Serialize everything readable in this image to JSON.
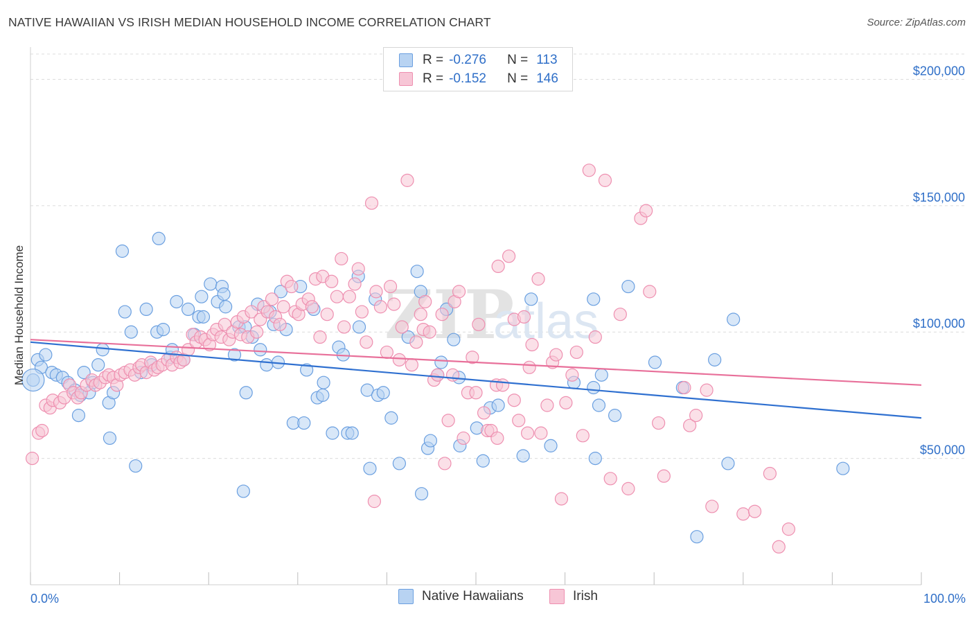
{
  "header": {
    "title": "NATIVE HAWAIIAN VS IRISH MEDIAN HOUSEHOLD INCOME CORRELATION CHART",
    "source": "Source: ZipAtlas.com"
  },
  "legend_top": {
    "rows": [
      {
        "r_label": "R =",
        "r_value": "-0.276",
        "n_label": "N =",
        "n_value": "113"
      },
      {
        "r_label": "R =",
        "r_value": "-0.152",
        "n_label": "N =",
        "n_value": "146"
      }
    ]
  },
  "legend_bottom": {
    "items": [
      {
        "label": "Native Hawaiians"
      },
      {
        "label": "Irish"
      }
    ]
  },
  "watermark": {
    "zip": "ZIP",
    "atlas": "atlas"
  },
  "colors": {
    "blue_fill": "#b8d3f2",
    "blue_stroke": "#6a9fe0",
    "blue_line": "#2f70d0",
    "pink_fill": "#f7c6d6",
    "pink_stroke": "#ee8fb0",
    "pink_line": "#e8709a",
    "axis_label": "#2f6fc8",
    "grid": "#dcdcdc"
  },
  "chart_data": {
    "type": "scatter",
    "title": "NATIVE HAWAIIAN VS IRISH MEDIAN HOUSEHOLD INCOME CORRELATION CHART",
    "xlabel": "",
    "ylabel": "Median Household Income",
    "xlim": [
      0,
      100
    ],
    "ylim": [
      0,
      210000
    ],
    "x_tick_labels": [
      "0.0%",
      "100.0%"
    ],
    "y_ticks": [
      50000,
      100000,
      150000,
      200000
    ],
    "y_tick_labels": [
      "$50,000",
      "$100,000",
      "$150,000",
      "$200,000"
    ],
    "grid": true,
    "legend_position": "top-center",
    "series": [
      {
        "name": "Native Hawaiians",
        "r": -0.276,
        "n": 113,
        "trend": {
          "x": [
            0,
            100
          ],
          "y": [
            96000,
            66000
          ]
        },
        "points": [
          [
            0.3,
            81000
          ],
          [
            0.8,
            89000
          ],
          [
            1.2,
            86000
          ],
          [
            1.7,
            91000
          ],
          [
            2.4,
            84000
          ],
          [
            2.9,
            83000
          ],
          [
            3.6,
            82000
          ],
          [
            4.2,
            80000
          ],
          [
            5.0,
            77000
          ],
          [
            5.6,
            75000
          ],
          [
            5.4,
            67000
          ],
          [
            6.0,
            84000
          ],
          [
            6.6,
            76000
          ],
          [
            7.0,
            80000
          ],
          [
            7.6,
            87000
          ],
          [
            8.1,
            93000
          ],
          [
            8.8,
            72000
          ],
          [
            9.3,
            76000
          ],
          [
            8.9,
            58000
          ],
          [
            10.3,
            132000
          ],
          [
            10.6,
            108000
          ],
          [
            11.3,
            100000
          ],
          [
            11.8,
            47000
          ],
          [
            12.4,
            84000
          ],
          [
            13.0,
            109000
          ],
          [
            13.6,
            87000
          ],
          [
            14.2,
            100000
          ],
          [
            14.4,
            137000
          ],
          [
            14.9,
            101000
          ],
          [
            15.7,
            90000
          ],
          [
            15.9,
            93000
          ],
          [
            16.4,
            112000
          ],
          [
            17.2,
            89000
          ],
          [
            17.7,
            109000
          ],
          [
            18.4,
            99000
          ],
          [
            18.9,
            106000
          ],
          [
            19.4,
            106000
          ],
          [
            19.2,
            114000
          ],
          [
            20.2,
            119000
          ],
          [
            21.0,
            112000
          ],
          [
            21.5,
            118000
          ],
          [
            21.7,
            115000
          ],
          [
            21.9,
            110000
          ],
          [
            22.9,
            91000
          ],
          [
            23.4,
            102000
          ],
          [
            23.9,
            37000
          ],
          [
            24.1,
            102000
          ],
          [
            24.2,
            76000
          ],
          [
            24.9,
            98000
          ],
          [
            25.5,
            111000
          ],
          [
            25.8,
            93000
          ],
          [
            26.5,
            87000
          ],
          [
            26.9,
            108000
          ],
          [
            27.3,
            103000
          ],
          [
            27.8,
            88000
          ],
          [
            28.1,
            116000
          ],
          [
            28.7,
            101000
          ],
          [
            29.5,
            64000
          ],
          [
            30.3,
            118000
          ],
          [
            31.0,
            85000
          ],
          [
            30.7,
            64000
          ],
          [
            31.8,
            109000
          ],
          [
            32.2,
            74000
          ],
          [
            32.9,
            80000
          ],
          [
            32.8,
            75000
          ],
          [
            33.9,
            60000
          ],
          [
            34.6,
            94000
          ],
          [
            35.1,
            91000
          ],
          [
            35.6,
            60000
          ],
          [
            36.1,
            60000
          ],
          [
            36.8,
            122000
          ],
          [
            36.9,
            102000
          ],
          [
            37.8,
            77000
          ],
          [
            38.1,
            46000
          ],
          [
            38.7,
            113000
          ],
          [
            39.0,
            75000
          ],
          [
            39.6,
            76000
          ],
          [
            40.5,
            66000
          ],
          [
            41.4,
            48000
          ],
          [
            42.4,
            98000
          ],
          [
            43.4,
            124000
          ],
          [
            43.8,
            116000
          ],
          [
            43.9,
            36000
          ],
          [
            44.6,
            54000
          ],
          [
            44.9,
            57000
          ],
          [
            45.7,
            83000
          ],
          [
            46.1,
            88000
          ],
          [
            46.7,
            109000
          ],
          [
            47.5,
            97000
          ],
          [
            48.1,
            82000
          ],
          [
            48.2,
            55000
          ],
          [
            50.1,
            62000
          ],
          [
            50.8,
            49000
          ],
          [
            51.6,
            70000
          ],
          [
            52.5,
            71000
          ],
          [
            55.3,
            51000
          ],
          [
            56.2,
            113000
          ],
          [
            58.4,
            55000
          ],
          [
            61.0,
            80000
          ],
          [
            63.2,
            113000
          ],
          [
            63.2,
            78000
          ],
          [
            63.4,
            50000
          ],
          [
            63.8,
            71000
          ],
          [
            64.1,
            83000
          ],
          [
            65.6,
            67000
          ],
          [
            67.1,
            118000
          ],
          [
            70.1,
            88000
          ],
          [
            73.2,
            78000
          ],
          [
            74.8,
            19000
          ],
          [
            76.8,
            89000
          ],
          [
            78.3,
            48000
          ],
          [
            78.9,
            105000
          ],
          [
            91.2,
            46000
          ]
        ]
      },
      {
        "name": "Irish",
        "r": -0.152,
        "n": 146,
        "trend": {
          "x": [
            0,
            100
          ],
          "y": [
            97000,
            79000
          ]
        },
        "points": [
          [
            0.2,
            50000
          ],
          [
            0.9,
            60000
          ],
          [
            1.3,
            61000
          ],
          [
            1.7,
            71000
          ],
          [
            2.2,
            70000
          ],
          [
            2.5,
            73000
          ],
          [
            3.3,
            72000
          ],
          [
            3.8,
            74000
          ],
          [
            4.4,
            79000
          ],
          [
            4.8,
            76000
          ],
          [
            5.3,
            74000
          ],
          [
            5.7,
            76000
          ],
          [
            6.3,
            79000
          ],
          [
            6.9,
            81000
          ],
          [
            7.3,
            79000
          ],
          [
            7.8,
            80000
          ],
          [
            8.4,
            82000
          ],
          [
            8.8,
            83000
          ],
          [
            9.3,
            82000
          ],
          [
            9.7,
            79000
          ],
          [
            10.1,
            83000
          ],
          [
            10.6,
            84000
          ],
          [
            11.2,
            85000
          ],
          [
            11.7,
            83000
          ],
          [
            12.2,
            86000
          ],
          [
            12.5,
            87000
          ],
          [
            13.0,
            84000
          ],
          [
            13.5,
            88000
          ],
          [
            13.9,
            85000
          ],
          [
            14.3,
            86000
          ],
          [
            14.8,
            87000
          ],
          [
            15.4,
            89000
          ],
          [
            15.9,
            87000
          ],
          [
            16.4,
            90000
          ],
          [
            16.8,
            88000
          ],
          [
            17.2,
            89000
          ],
          [
            17.7,
            93000
          ],
          [
            18.2,
            99000
          ],
          [
            18.6,
            96000
          ],
          [
            19.1,
            98000
          ],
          [
            19.6,
            97000
          ],
          [
            20.1,
            95000
          ],
          [
            20.5,
            99000
          ],
          [
            20.9,
            101000
          ],
          [
            21.4,
            98000
          ],
          [
            21.8,
            103000
          ],
          [
            22.3,
            97000
          ],
          [
            22.7,
            100000
          ],
          [
            23.2,
            104000
          ],
          [
            23.6,
            99000
          ],
          [
            23.9,
            106000
          ],
          [
            24.4,
            98000
          ],
          [
            24.8,
            108000
          ],
          [
            25.4,
            100000
          ],
          [
            25.8,
            105000
          ],
          [
            26.2,
            110000
          ],
          [
            26.6,
            108000
          ],
          [
            27.1,
            113000
          ],
          [
            27.5,
            106000
          ],
          [
            28.0,
            103000
          ],
          [
            28.4,
            110000
          ],
          [
            28.8,
            120000
          ],
          [
            29.3,
            118000
          ],
          [
            29.7,
            108000
          ],
          [
            30.1,
            107000
          ],
          [
            30.5,
            111000
          ],
          [
            31.2,
            113000
          ],
          [
            31.6,
            110000
          ],
          [
            32.0,
            121000
          ],
          [
            32.5,
            98000
          ],
          [
            32.8,
            122000
          ],
          [
            33.3,
            107000
          ],
          [
            33.8,
            120000
          ],
          [
            34.4,
            114000
          ],
          [
            34.9,
            129000
          ],
          [
            35.2,
            102000
          ],
          [
            35.8,
            114000
          ],
          [
            36.4,
            119000
          ],
          [
            36.8,
            125000
          ],
          [
            37.2,
            108000
          ],
          [
            37.7,
            96000
          ],
          [
            38.3,
            151000
          ],
          [
            38.8,
            116000
          ],
          [
            39.3,
            110000
          ],
          [
            40.0,
            92000
          ],
          [
            40.4,
            118000
          ],
          [
            40.8,
            111000
          ],
          [
            41.4,
            89000
          ],
          [
            41.7,
            102000
          ],
          [
            42.3,
            160000
          ],
          [
            42.8,
            87000
          ],
          [
            43.3,
            96000
          ],
          [
            43.8,
            107000
          ],
          [
            44.1,
            101000
          ],
          [
            44.3,
            112000
          ],
          [
            44.8,
            100000
          ],
          [
            45.3,
            81000
          ],
          [
            45.7,
            83000
          ],
          [
            46.2,
            107000
          ],
          [
            46.5,
            48000
          ],
          [
            46.9,
            65000
          ],
          [
            47.4,
            83000
          ],
          [
            47.6,
            112000
          ],
          [
            48.1,
            116000
          ],
          [
            48.6,
            58000
          ],
          [
            49.1,
            76000
          ],
          [
            49.6,
            90000
          ],
          [
            50.0,
            76000
          ],
          [
            50.3,
            103000
          ],
          [
            50.9,
            68000
          ],
          [
            51.3,
            61000
          ],
          [
            51.7,
            61000
          ],
          [
            52.3,
            79000
          ],
          [
            52.5,
            126000
          ],
          [
            53.0,
            79000
          ],
          [
            53.7,
            130000
          ],
          [
            54.3,
            73000
          ],
          [
            54.3,
            105000
          ],
          [
            54.8,
            65000
          ],
          [
            55.4,
            106000
          ],
          [
            55.8,
            60000
          ],
          [
            56.3,
            95000
          ],
          [
            57.0,
            121000
          ],
          [
            57.3,
            60000
          ],
          [
            58.0,
            71000
          ],
          [
            58.6,
            88000
          ],
          [
            59.0,
            91000
          ],
          [
            59.6,
            34000
          ],
          [
            60.1,
            72000
          ],
          [
            60.8,
            83000
          ],
          [
            61.3,
            92000
          ],
          [
            62.0,
            59000
          ],
          [
            62.7,
            164000
          ],
          [
            63.4,
            98000
          ],
          [
            64.5,
            160000
          ],
          [
            65.1,
            42000
          ],
          [
            66.2,
            107000
          ],
          [
            67.1,
            38000
          ],
          [
            68.5,
            145000
          ],
          [
            69.1,
            148000
          ],
          [
            69.5,
            116000
          ],
          [
            71.1,
            43000
          ],
          [
            73.4,
            78000
          ],
          [
            74.0,
            63000
          ],
          [
            74.7,
            67000
          ],
          [
            75.9,
            77000
          ],
          [
            76.5,
            31000
          ],
          [
            80.0,
            28000
          ],
          [
            81.3,
            29000
          ],
          [
            83.0,
            44000
          ],
          [
            84.0,
            15000
          ],
          [
            85.1,
            22000
          ],
          [
            70.5,
            64000
          ],
          [
            52.4,
            58000
          ],
          [
            56.0,
            86000
          ],
          [
            38.6,
            33000
          ]
        ]
      }
    ]
  }
}
